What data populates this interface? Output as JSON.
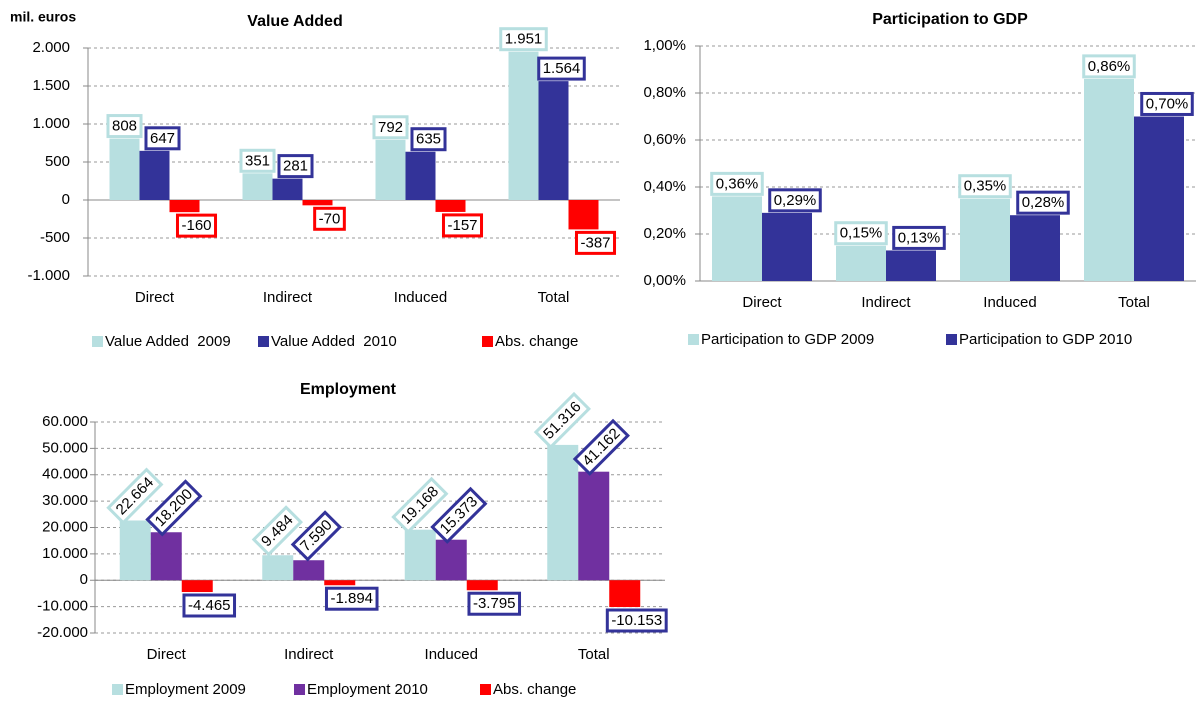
{
  "chart_data": [
    {
      "type": "bar",
      "title": "Value Added",
      "unit": "mil. euros",
      "categories": [
        "Direct",
        "Indirect",
        "Induced",
        "Total"
      ],
      "series": [
        {
          "name": "Value Added  2009",
          "color": "#b7dfe0",
          "label_border": "#b7dfe0",
          "values": [
            808,
            351,
            792,
            1951
          ],
          "value_labels": [
            "808",
            "351",
            "792",
            "1.951"
          ]
        },
        {
          "name": "Value Added  2010",
          "color": "#333399",
          "label_border": "#333399",
          "values": [
            647,
            281,
            635,
            1564
          ],
          "value_labels": [
            "647",
            "281",
            "635",
            "1.564"
          ]
        },
        {
          "name": "Abs. change",
          "color": "#ff0000",
          "label_border": "#ff0000",
          "values": [
            -160,
            -70,
            -157,
            -387
          ]
        }
      ],
      "ylim": [
        -1000,
        2000
      ],
      "yticks": [
        {
          "value": -1000,
          "label": "-1.000"
        },
        -500,
        0,
        500,
        {
          "value": 1000,
          "label": "1.000"
        },
        {
          "value": 1500,
          "label": "1.500"
        },
        {
          "value": 2000,
          "label": "2.000"
        }
      ],
      "grid": true,
      "legend": "bottom"
    },
    {
      "type": "bar",
      "title": "Participation to GDP",
      "categories": [
        "Direct",
        "Indirect",
        "Induced",
        "Total"
      ],
      "series": [
        {
          "name": "Participation to GDP 2009",
          "color": "#b7dfe0",
          "label_border": "#b7dfe0",
          "values": [
            0.36,
            0.15,
            0.35,
            0.86
          ],
          "value_labels": [
            "0,36%",
            "0,15%",
            "0,35%",
            "0,86%"
          ]
        },
        {
          "name": "Participation to GDP 2010",
          "color": "#333399",
          "label_border": "#333399",
          "values": [
            0.29,
            0.13,
            0.28,
            0.7
          ],
          "value_labels": [
            "0,29%",
            "0,13%",
            "0,28%",
            "0,70%"
          ]
        }
      ],
      "ylim": [
        0,
        1
      ],
      "yticks": [
        {
          "value": 0,
          "label": "0,00%"
        },
        {
          "value": 0.2,
          "label": "0,20%"
        },
        {
          "value": 0.4,
          "label": "0,40%"
        },
        {
          "value": 0.6,
          "label": "0,60%"
        },
        {
          "value": 0.8,
          "label": "0,80%"
        },
        {
          "value": 1,
          "label": "1,00%"
        }
      ],
      "grid": true,
      "legend": "bottom"
    },
    {
      "type": "bar",
      "title": "Employment",
      "categories": [
        "Direct",
        "Indirect",
        "Induced",
        "Total"
      ],
      "series": [
        {
          "name": "Employment 2009",
          "color": "#b7dfe0",
          "label_border": "#b7dfe0",
          "values": [
            22664,
            9484,
            19168,
            51316
          ],
          "value_labels": [
            "22.664",
            "9.484",
            "19.168",
            "51.316"
          ]
        },
        {
          "name": "Employment 2010",
          "color": "#7030a0",
          "label_border": "#333399",
          "values": [
            18200,
            7590,
            15373,
            41162
          ],
          "value_labels": [
            "18.200",
            "7.590",
            "15.373",
            "41.162"
          ]
        },
        {
          "name": "Abs. change",
          "color": "#ff0000",
          "label_border": "#333399",
          "values": [
            -4465,
            -1894,
            -3795,
            -10153
          ],
          "value_labels": [
            "-4.465",
            "-1.894",
            "-3.795",
            "-10.153"
          ]
        }
      ],
      "ylim": [
        -20000,
        60000
      ],
      "yticks": [
        {
          "value": -20000,
          "label": "-20.000"
        },
        {
          "value": -10000,
          "label": "-10.000"
        },
        0,
        {
          "value": 10000,
          "label": "10.000"
        },
        {
          "value": 20000,
          "label": "20.000"
        },
        {
          "value": 30000,
          "label": "30.000"
        },
        {
          "value": 40000,
          "label": "40.000"
        },
        {
          "value": 50000,
          "label": "50.000"
        },
        {
          "value": 60000,
          "label": "60.000"
        }
      ],
      "grid": true,
      "legend": "bottom"
    }
  ]
}
